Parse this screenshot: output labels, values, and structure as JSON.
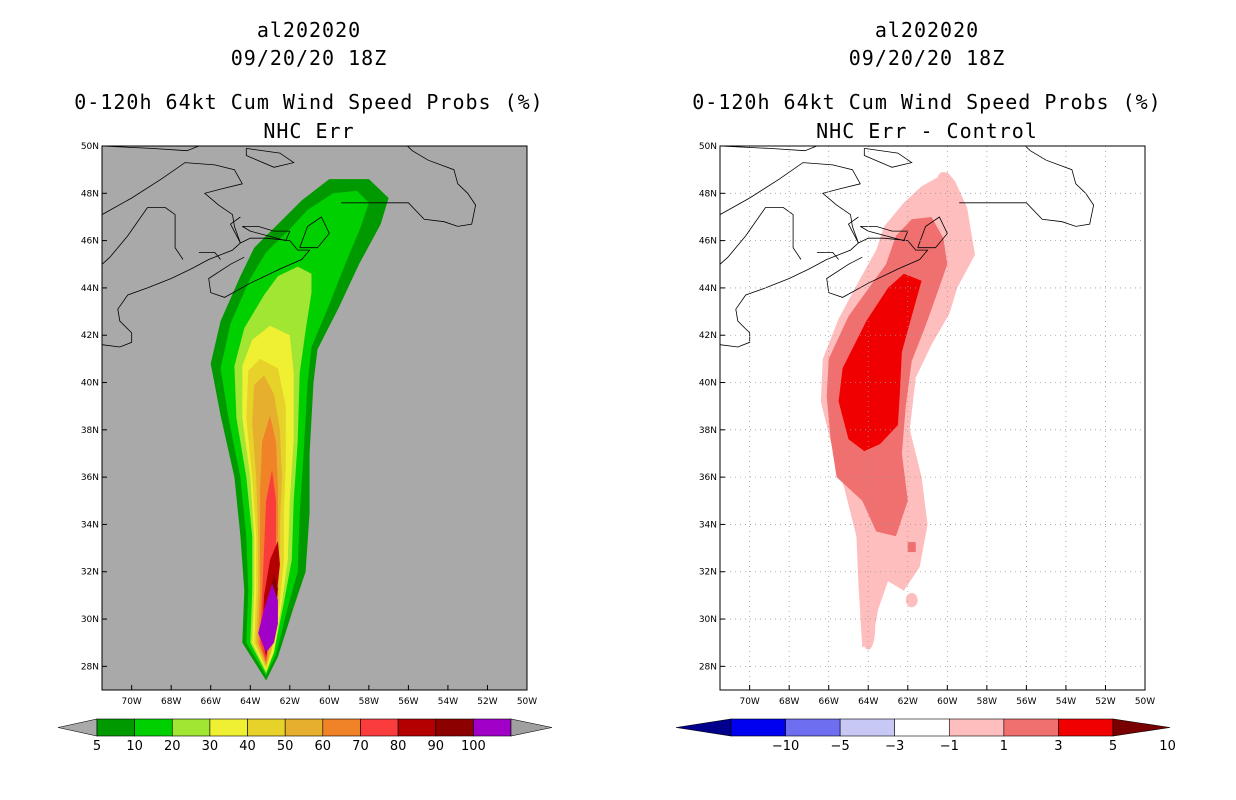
{
  "chart_data": [
    {
      "type": "heatmap",
      "panel": "left",
      "title": [
        "al202020",
        "09/20/20 18Z",
        "0-120h 64kt Cum Wind Speed Probs (%)",
        "NHC Err"
      ],
      "xlabel": "",
      "ylabel": "",
      "x_ticks": [
        "70W",
        "68W",
        "66W",
        "64W",
        "62W",
        "60W",
        "58W",
        "56W",
        "54W",
        "52W",
        "50W"
      ],
      "y_ticks": [
        "50N",
        "48N",
        "46N",
        "44N",
        "42N",
        "40N",
        "38N",
        "36N",
        "34N",
        "32N",
        "30N",
        "28N"
      ],
      "xlim": [
        -71.5,
        -50
      ],
      "ylim": [
        27,
        50
      ],
      "background": "#a9a9a9",
      "colorbar": {
        "labels": [
          "5",
          "10",
          "20",
          "30",
          "40",
          "50",
          "60",
          "70",
          "80",
          "90",
          "100"
        ],
        "colors": [
          "#009a00",
          "#00d000",
          "#a0e632",
          "#f0f032",
          "#e6d228",
          "#e6af2d",
          "#f08228",
          "#fa3c3c",
          "#b40000",
          "#8c0000",
          "#a000c8",
          "#a0a0a0"
        ]
      },
      "contour_levels_pct": [
        5,
        10,
        20,
        30,
        40,
        50,
        60,
        70,
        80,
        90
      ],
      "track_center": [
        [
          -63.0,
          28.0
        ],
        [
          -63.1,
          30.0
        ],
        [
          -63.0,
          32.0
        ],
        [
          -62.8,
          34.0
        ],
        [
          -62.9,
          36.0
        ],
        [
          -63.0,
          38.0
        ],
        [
          -62.7,
          40.0
        ],
        [
          -62.2,
          42.0
        ],
        [
          -61.6,
          44.0
        ],
        [
          -61.3,
          46.0
        ],
        [
          -60.5,
          48.5
        ]
      ],
      "peak_value_pct": 100
    },
    {
      "type": "heatmap",
      "panel": "right",
      "title": [
        "al202020",
        "09/20/20 18Z",
        "0-120h 64kt Cum Wind Speed Probs (%)",
        "NHC Err - Control"
      ],
      "xlabel": "",
      "ylabel": "",
      "x_ticks": [
        "70W",
        "68W",
        "66W",
        "64W",
        "62W",
        "60W",
        "58W",
        "56W",
        "54W",
        "52W",
        "50W"
      ],
      "y_ticks": [
        "50N",
        "48N",
        "46N",
        "44N",
        "42N",
        "40N",
        "38N",
        "36N",
        "34N",
        "32N",
        "30N",
        "28N"
      ],
      "xlim": [
        -71.5,
        -50
      ],
      "ylim": [
        27,
        50
      ],
      "background": "#ffffff",
      "colorbar": {
        "labels": [
          "-10",
          "-5",
          "-3",
          "-1",
          "1",
          "3",
          "5",
          "10"
        ],
        "colors": [
          "#00008c",
          "#0000f0",
          "#6e6ef0",
          "#c8c8f5",
          "#ffffff",
          "#ffbebe",
          "#f07070",
          "#f00000",
          "#780000"
        ]
      },
      "contour_levels_diff": [
        1,
        3,
        5
      ],
      "peak_value_diff": 5
    }
  ]
}
